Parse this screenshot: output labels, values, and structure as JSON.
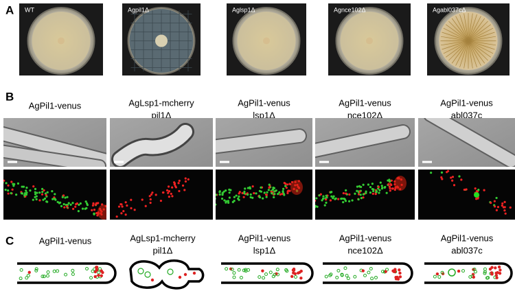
{
  "panel_a": {
    "label": "A",
    "plates": [
      "WT",
      "Agpil1Δ",
      "Aglsp1Δ",
      "Agnce102Δ",
      "Agabl037cΔ"
    ]
  },
  "panel_b": {
    "label": "B",
    "strains": [
      [
        "AgPil1-venus"
      ],
      [
        "AgLsp1-mcherry",
        "pil1Δ"
      ],
      [
        "AgPil1-venus",
        "lsp1Δ"
      ],
      [
        "AgPil1-venus",
        "nce102Δ"
      ],
      [
        "AgPil1-venus",
        "abl037c"
      ]
    ]
  },
  "panel_c": {
    "label": "C",
    "strains": [
      [
        "AgPil1-venus"
      ],
      [
        "AgLsp1-mcherry",
        "pil1Δ"
      ],
      [
        "AgPil1-venus",
        "lsp1Δ"
      ],
      [
        "AgPil1-venus",
        "nce102Δ"
      ],
      [
        "AgPil1-venus",
        "abl037c"
      ]
    ]
  }
}
